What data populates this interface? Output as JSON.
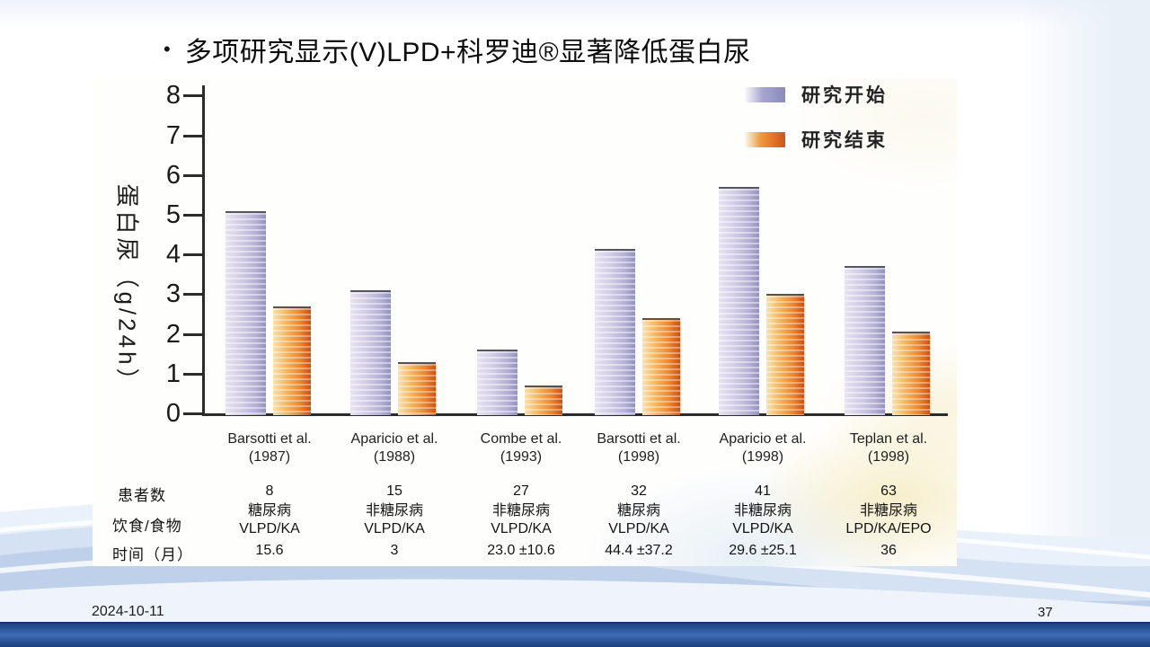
{
  "slide": {
    "bullet_char": "•",
    "title": "多项研究显示(V)LPD+科罗迪®显著降低蛋白尿",
    "footer": {
      "date": "2024-10-11",
      "page": "37"
    }
  },
  "chart_data": {
    "type": "bar",
    "title": "",
    "xlabel": "",
    "ylabel": "蛋白尿（g/24h）",
    "ylim": [
      0,
      8
    ],
    "yticks": [
      0,
      1,
      2,
      3,
      4,
      5,
      6,
      7,
      8
    ],
    "grid": false,
    "legend_position": "top-right",
    "categories": [
      {
        "name": "Barsotti et al.",
        "year": "(1987)"
      },
      {
        "name": "Aparicio et al.",
        "year": "(1988)"
      },
      {
        "name": "Combe et al.",
        "year": "(1993)"
      },
      {
        "name": "Barsotti et al.",
        "year": "(1998)"
      },
      {
        "name": "Aparicio et al.",
        "year": "(1998)"
      },
      {
        "name": "Teplan et al.",
        "year": "(1998)"
      }
    ],
    "series": [
      {
        "name": "研究开始",
        "color": "#9a97c6",
        "values": [
          5.1,
          3.1,
          1.6,
          4.15,
          5.7,
          3.7
        ]
      },
      {
        "name": "研究结束",
        "color": "#e2701f",
        "values": [
          2.7,
          1.3,
          0.7,
          2.4,
          3.0,
          2.05
        ]
      }
    ],
    "table": {
      "rows": [
        {
          "label": "患者数",
          "cells": [
            "8",
            "15",
            "27",
            "32",
            "41",
            "63"
          ]
        },
        {
          "label": "饮食/食物",
          "cells": [
            [
              "糖尿病",
              "VLPD/KA"
            ],
            [
              "非糖尿病",
              "VLPD/KA"
            ],
            [
              "非糖尿病",
              "VLPD/KA"
            ],
            [
              "糖尿病",
              "VLPD/KA"
            ],
            [
              "非糖尿病",
              "VLPD/KA"
            ],
            [
              "非糖尿病",
              "LPD/KA/EPO"
            ]
          ]
        },
        {
          "label": "时间（月）",
          "cells": [
            "15.6",
            "3",
            "23.0 ±10.6",
            "44.4 ±37.2",
            "29.6 ±25.1",
            "36"
          ]
        }
      ]
    }
  },
  "colors": {
    "start_bar_light": "#e7e3f1",
    "start_bar_dark": "#9490c1",
    "end_bar_light": "#f9e2ad",
    "end_bar_dark": "#cc5013",
    "bottom_bar": "#274e92",
    "wave": "#bfd0ea"
  }
}
